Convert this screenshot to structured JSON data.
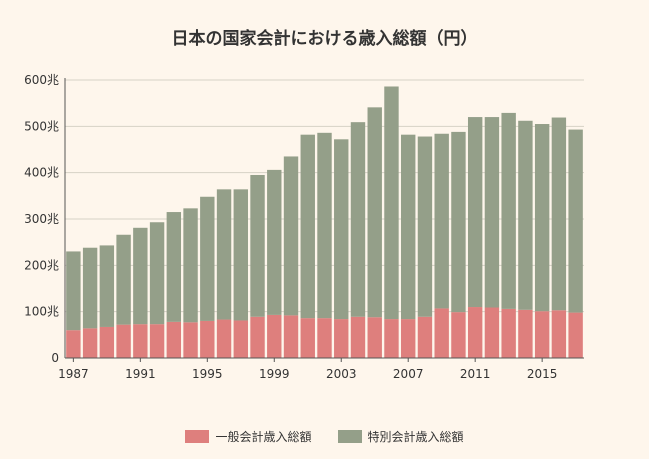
{
  "chart_data": {
    "type": "bar",
    "stacked": true,
    "title": "日本の国家会計における歳入総額（円）",
    "xlabel": "",
    "ylabel": "",
    "x": [
      1987,
      1988,
      1989,
      1990,
      1991,
      1992,
      1993,
      1994,
      1995,
      1996,
      1997,
      1998,
      1999,
      2000,
      2001,
      2002,
      2003,
      2004,
      2005,
      2006,
      2007,
      2008,
      2009,
      2010,
      2011,
      2012,
      2013,
      2014,
      2015,
      2016,
      2017
    ],
    "x_tick_labels": [
      "1987",
      "1991",
      "1995",
      "1999",
      "2003",
      "2007",
      "2011",
      "2015"
    ],
    "x_tick_values": [
      1987,
      1991,
      1995,
      1999,
      2003,
      2007,
      2011,
      2015
    ],
    "y_tick_labels": [
      "0",
      "100兆",
      "200兆",
      "300兆",
      "400兆",
      "500兆",
      "600兆"
    ],
    "ylim": [
      0,
      600
    ],
    "grid": true,
    "legend_position": "bottom",
    "series": [
      {
        "name": "一般会計歳入総額",
        "color": "#de7f7d",
        "values": [
          60,
          64,
          67,
          72,
          73,
          73,
          78,
          77,
          80,
          83,
          81,
          89,
          93,
          92,
          86,
          86,
          84,
          89,
          88,
          84,
          84,
          89,
          107,
          99,
          110,
          109,
          106,
          104,
          101,
          103,
          98
        ]
      },
      {
        "name": "特別会計歳入総額",
        "color": "#949f89",
        "values": [
          170,
          174,
          176,
          194,
          208,
          220,
          237,
          246,
          268,
          281,
          283,
          306,
          313,
          343,
          396,
          400,
          388,
          420,
          453,
          502,
          398,
          389,
          377,
          389,
          410,
          411,
          423,
          408,
          404,
          416,
          395
        ]
      }
    ]
  }
}
